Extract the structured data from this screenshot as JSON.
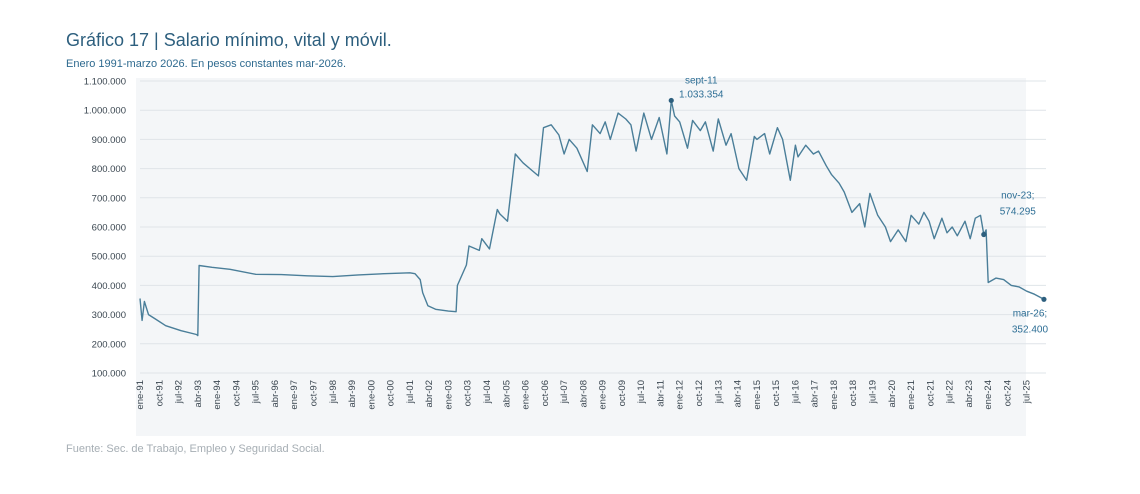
{
  "title": "Gráfico 17 | Salario mínimo, vital y móvil.",
  "subtitle": "Enero 1991-marzo 2026. En pesos constantes mar-2026.",
  "source": "Fuente: Sec. de Trabajo, Empleo y Seguridad Social.",
  "colors": {
    "line": "#4a7e99",
    "text": "#2d5f7e",
    "plot_bg": "#f4f6f8",
    "grid": "#dfe4e8"
  },
  "chart_data": {
    "type": "line",
    "title": "Gráfico 17 | Salario mínimo, vital y móvil.",
    "subtitle": "Enero 1991-marzo 2026. En pesos constantes mar-2026.",
    "xlabel": "",
    "ylabel": "",
    "ylim": [
      100000,
      1100000
    ],
    "xlim": [
      1991.0,
      2026.25
    ],
    "y_ticks": [
      100000,
      200000,
      300000,
      400000,
      500000,
      600000,
      700000,
      800000,
      900000,
      1000000,
      1100000
    ],
    "y_tick_labels": [
      "100.000",
      "200.000",
      "300.000",
      "400.000",
      "500.000",
      "600.000",
      "700.000",
      "800.000",
      "900.000",
      "1.000.000",
      "1.100.000"
    ],
    "x_tick_labels": [
      "ene-91",
      "oct-91",
      "jul-92",
      "abr-93",
      "ene-94",
      "oct-94",
      "jul-95",
      "abr-96",
      "ene-97",
      "oct-97",
      "jul-98",
      "abr-99",
      "ene-00",
      "oct-00",
      "jul-01",
      "abr-02",
      "ene-03",
      "oct-03",
      "jul-04",
      "abr-05",
      "ene-06",
      "oct-06",
      "jul-07",
      "abr-08",
      "ene-09",
      "oct-09",
      "jul-10",
      "abr-11",
      "ene-12",
      "oct-12",
      "jul-13",
      "abr-14",
      "ene-15",
      "oct-15",
      "jul-16",
      "abr-17",
      "ene-18",
      "oct-18",
      "jul-19",
      "abr-20",
      "ene-21",
      "oct-21",
      "jul-22",
      "abr-23",
      "ene-24",
      "oct-24",
      "jul-25"
    ],
    "grid": true,
    "series": [
      {
        "name": "Salario mínimo, vital y móvil",
        "x": [
          1991.0,
          1991.08,
          1991.17,
          1991.33,
          1991.6,
          1992.0,
          1992.6,
          1993.2,
          1993.25,
          1993.3,
          1993.8,
          1994.5,
          1995.5,
          1996.5,
          1997.5,
          1998.5,
          1999.5,
          2000.5,
          2001.5,
          2001.7,
          2001.9,
          2002.0,
          2002.2,
          2002.5,
          2003.0,
          2003.3,
          2003.35,
          2003.7,
          2003.8,
          2004.2,
          2004.3,
          2004.6,
          2004.9,
          2005.0,
          2005.3,
          2005.6,
          2005.9,
          2006.3,
          2006.5,
          2006.7,
          2007.0,
          2007.3,
          2007.5,
          2007.7,
          2008.0,
          2008.4,
          2008.6,
          2008.9,
          2009.1,
          2009.3,
          2009.6,
          2009.9,
          2010.1,
          2010.3,
          2010.6,
          2010.9,
          2011.2,
          2011.5,
          2011.67,
          2011.8,
          2012.0,
          2012.3,
          2012.5,
          2012.8,
          2013.0,
          2013.3,
          2013.5,
          2013.8,
          2014.0,
          2014.3,
          2014.6,
          2014.9,
          2015.0,
          2015.3,
          2015.5,
          2015.8,
          2016.0,
          2016.3,
          2016.5,
          2016.6,
          2016.9,
          2017.2,
          2017.4,
          2017.7,
          2017.9,
          2018.2,
          2018.4,
          2018.7,
          2019.0,
          2019.2,
          2019.4,
          2019.7,
          2020.0,
          2020.2,
          2020.5,
          2020.8,
          2021.0,
          2021.3,
          2021.5,
          2021.7,
          2021.9,
          2022.2,
          2022.4,
          2022.6,
          2022.8,
          2023.1,
          2023.3,
          2023.5,
          2023.7,
          2023.83,
          2023.92,
          2024.0,
          2024.3,
          2024.6,
          2024.9,
          2025.2,
          2025.5,
          2025.8,
          2026.17
        ],
        "values": [
          355000,
          280000,
          345000,
          300000,
          285000,
          262000,
          245000,
          232000,
          228000,
          468000,
          462000,
          455000,
          438000,
          437000,
          433000,
          430000,
          436000,
          440000,
          443000,
          440000,
          420000,
          375000,
          330000,
          318000,
          312000,
          310000,
          400000,
          470000,
          535000,
          520000,
          560000,
          525000,
          660000,
          645000,
          620000,
          850000,
          820000,
          790000,
          775000,
          940000,
          950000,
          915000,
          850000,
          900000,
          870000,
          790000,
          950000,
          920000,
          960000,
          900000,
          990000,
          970000,
          950000,
          860000,
          990000,
          900000,
          975000,
          850000,
          1033354,
          980000,
          960000,
          870000,
          965000,
          930000,
          960000,
          860000,
          970000,
          880000,
          920000,
          800000,
          760000,
          910000,
          900000,
          920000,
          850000,
          940000,
          900000,
          760000,
          880000,
          840000,
          880000,
          850000,
          860000,
          810000,
          780000,
          750000,
          720000,
          650000,
          680000,
          600000,
          715000,
          640000,
          600000,
          550000,
          590000,
          550000,
          640000,
          610000,
          650000,
          620000,
          560000,
          630000,
          580000,
          600000,
          570000,
          620000,
          560000,
          630000,
          640000,
          574295,
          590000,
          410000,
          425000,
          420000,
          400000,
          395000,
          380000,
          370000,
          352400
        ]
      }
    ],
    "annotations": [
      {
        "label": "sept-11",
        "value_label": "1.033.354",
        "x": 2011.67,
        "y": 1033354
      },
      {
        "label": "nov-23;",
        "value_label": "574.295",
        "x": 2023.83,
        "y": 574295
      },
      {
        "label": "mar-26;",
        "value_label": "352.400",
        "x": 2026.17,
        "y": 352400
      }
    ]
  }
}
